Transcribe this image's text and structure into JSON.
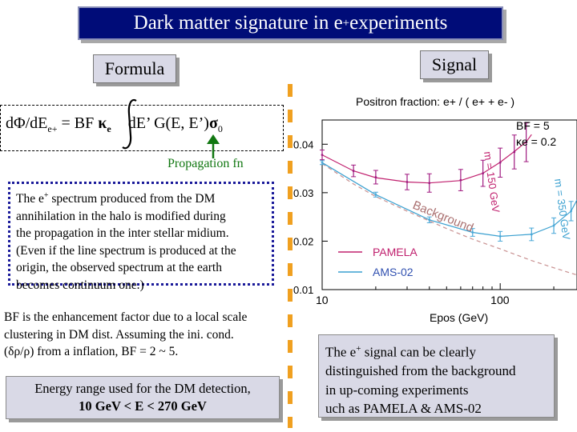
{
  "title": {
    "prefix": "Dark matter signature in e",
    "sup": "+",
    "suffix": " experiments"
  },
  "formula_label": "Formula",
  "signal_label": "Signal",
  "formula": {
    "lhs": "dΦ/dE",
    "lhs_sub": "e+",
    "eq": " = BF ",
    "kappa": "κ",
    "kappa_sub": "e",
    "rhs": " dE’ G(E, E’)",
    "sigma": "σ",
    "sigma_sub": "0"
  },
  "propagation_label": "Propagation fn",
  "description": {
    "line1_prefix": "The e",
    "line1_sup": "+",
    "line1_suffix": " spectrum produced from the DM",
    "lines": [
      "annihilation in the halo is modified during",
      "the propagation in the inter stellar midium.",
      "(Even if the line spectrum is produced at the",
      " origin, the observed spectrum at the earth",
      " becomes continuum one.)"
    ]
  },
  "bf_note": [
    "BF is the enhancement factor due to a local scale",
    "clustering in DM dist.  Assuming the ini. cond.",
    "(δρ/ρ) from a inflation, BF = 2 ~ 5."
  ],
  "energy_range": {
    "line1": "Energy range used for the DM detection,",
    "line2": "10 GeV < E < 270 GeV"
  },
  "signal_text": {
    "line1_prefix": "The e",
    "line1_sup": "+",
    "line1_suffix": " signal can be clearly",
    "lines": [
      "distinguished from the background",
      "in up-coming experiments",
      "uch as PAMELA & AMS-02"
    ]
  },
  "colors": {
    "title_bg": "#000c78",
    "pamela": "#c0206e",
    "ams": "#3aa0d0",
    "background_curve": "#c89090",
    "dashline": "#f0a020"
  },
  "chart_data": {
    "type": "line",
    "title": "Positron fraction: e+ / ( e+ + e- )",
    "xlabel": "Epos (GeV)",
    "ylabel": "",
    "x_scale": "log",
    "xlim": [
      10,
      270
    ],
    "ylim": [
      0.01,
      0.045
    ],
    "x_ticks": [
      "10",
      "100"
    ],
    "y_ticks": [
      "0.01",
      "0.02",
      "0.03",
      "0.04"
    ],
    "annotations": [
      "BF = 5",
      "κe = 0.2",
      "m = 150 GeV",
      "m = 350 GeV",
      "Background"
    ],
    "legend": [
      {
        "name": "PAMELA",
        "color": "#c0206e"
      },
      {
        "name": "AMS-02",
        "color": "#3aa0d0"
      }
    ],
    "series": [
      {
        "name": "Background",
        "x": [
          10,
          15,
          20,
          30,
          50,
          70,
          100,
          150,
          200,
          270
        ],
        "y": [
          0.036,
          0.0318,
          0.0292,
          0.0262,
          0.0226,
          0.0204,
          0.0184,
          0.016,
          0.0145,
          0.013
        ]
      },
      {
        "name": "m = 150 GeV",
        "x": [
          10,
          15,
          20,
          30,
          40,
          60,
          80,
          100,
          120,
          140,
          150
        ],
        "y": [
          0.0378,
          0.0345,
          0.0331,
          0.0322,
          0.032,
          0.0325,
          0.034,
          0.0363,
          0.0385,
          0.0405,
          0.042
        ]
      },
      {
        "name": "m = 350 GeV",
        "x": [
          10,
          20,
          40,
          70,
          100,
          150,
          200,
          250,
          270
        ],
        "y": [
          0.0362,
          0.0296,
          0.0244,
          0.0218,
          0.021,
          0.0214,
          0.0232,
          0.0262,
          0.0285
        ]
      },
      {
        "name": "PAMELA",
        "x": [
          10,
          15,
          20,
          30,
          40,
          60,
          80,
          100,
          120,
          140
        ],
        "y": [
          0.0378,
          0.0345,
          0.0332,
          0.0322,
          0.032,
          0.0326,
          0.034,
          0.0362,
          0.0384,
          0.0404
        ],
        "err": [
          0.001,
          0.0012,
          0.0014,
          0.0016,
          0.0019,
          0.0022,
          0.0027,
          0.003,
          0.0035,
          0.004
        ]
      },
      {
        "name": "AMS-02",
        "x": [
          10,
          20,
          40,
          70,
          100,
          150,
          200,
          250
        ],
        "y": [
          0.0362,
          0.0296,
          0.0244,
          0.0218,
          0.021,
          0.0214,
          0.0232,
          0.0262
        ],
        "err": [
          0.0004,
          0.0005,
          0.0006,
          0.0008,
          0.001,
          0.0013,
          0.0016,
          0.002
        ]
      }
    ]
  }
}
